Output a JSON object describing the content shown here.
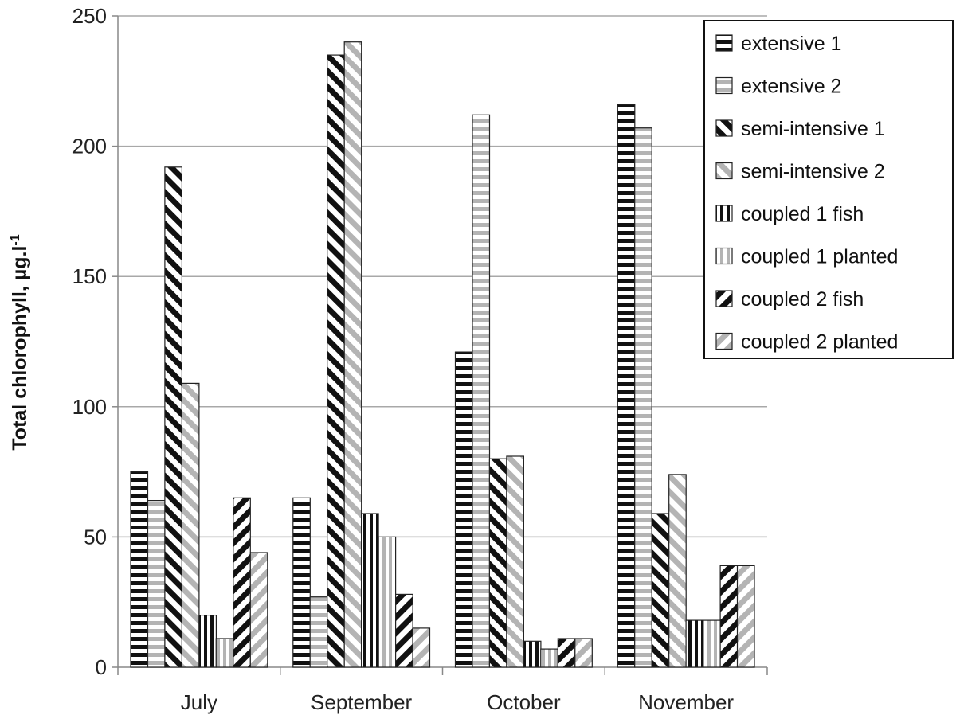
{
  "chart_data": {
    "type": "bar",
    "title": "",
    "xlabel": "",
    "ylabel": "Total chlorophyll, µg.l",
    "ylabel_superscript": "-1",
    "categories": [
      "July",
      "September",
      "October",
      "November"
    ],
    "ylim": [
      0,
      250
    ],
    "yticks": [
      0,
      50,
      100,
      150,
      200,
      250
    ],
    "grid": true,
    "legend_position": "top-right",
    "series": [
      {
        "name": "extensive 1",
        "pattern": "horizontal-stripes-dark",
        "values": [
          75,
          65,
          121,
          216
        ]
      },
      {
        "name": "extensive 2",
        "pattern": "horizontal-stripes-light",
        "values": [
          64,
          27,
          212,
          207
        ]
      },
      {
        "name": "semi-intensive 1",
        "pattern": "diagonal-stripes-dark",
        "values": [
          192,
          235,
          80,
          59
        ]
      },
      {
        "name": "semi-intensive 2",
        "pattern": "diagonal-stripes-light",
        "values": [
          109,
          240,
          81,
          74
        ]
      },
      {
        "name": "coupled 1 fish",
        "pattern": "vertical-stripes-dark",
        "values": [
          20,
          59,
          10,
          18
        ]
      },
      {
        "name": "coupled 1 planted",
        "pattern": "vertical-stripes-light",
        "values": [
          11,
          50,
          7,
          18
        ]
      },
      {
        "name": "coupled 2 fish",
        "pattern": "back-diagonal-stripes-dark",
        "values": [
          65,
          28,
          11,
          39
        ]
      },
      {
        "name": "coupled 2 planted",
        "pattern": "back-diagonal-stripes-light",
        "values": [
          44,
          15,
          11,
          39
        ]
      }
    ]
  }
}
